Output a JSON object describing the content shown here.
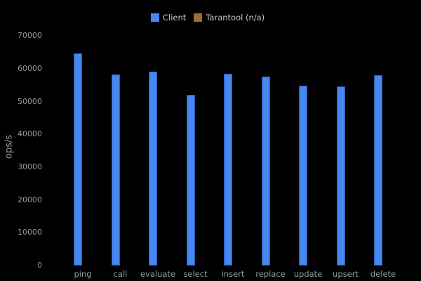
{
  "colors": {
    "background": "#000000",
    "client_bar": "#4687f0",
    "client_bar_border": "#2a55a8",
    "tarantool_swatch": "#a3692e",
    "axis_text": "#9a9a9a",
    "legend_text": "#c9c9c9"
  },
  "legend": {
    "items": [
      {
        "label": "Client",
        "color": "#4687f0"
      },
      {
        "label": "Tarantool (n/a)",
        "color": "#a3692e"
      }
    ]
  },
  "chart_data": {
    "type": "bar",
    "title": "",
    "xlabel": "",
    "ylabel": "ops/s",
    "categories": [
      "ping",
      "call",
      "evaluate",
      "select",
      "insert",
      "replace",
      "update",
      "upsert",
      "delete"
    ],
    "series": [
      {
        "name": "Client",
        "color": "#4687f0",
        "values": [
          64600,
          58100,
          59000,
          52000,
          58300,
          57600,
          54700,
          54400,
          57900
        ]
      },
      {
        "name": "Tarantool (n/a)",
        "color": "#a3692e",
        "values": [
          0,
          0,
          0,
          0,
          0,
          0,
          0,
          0,
          0
        ]
      }
    ],
    "ylim": [
      0,
      70000
    ],
    "yticks": [
      0,
      10000,
      20000,
      30000,
      40000,
      50000,
      60000,
      70000
    ],
    "grid": false,
    "legend_position": "top",
    "background": "black"
  }
}
